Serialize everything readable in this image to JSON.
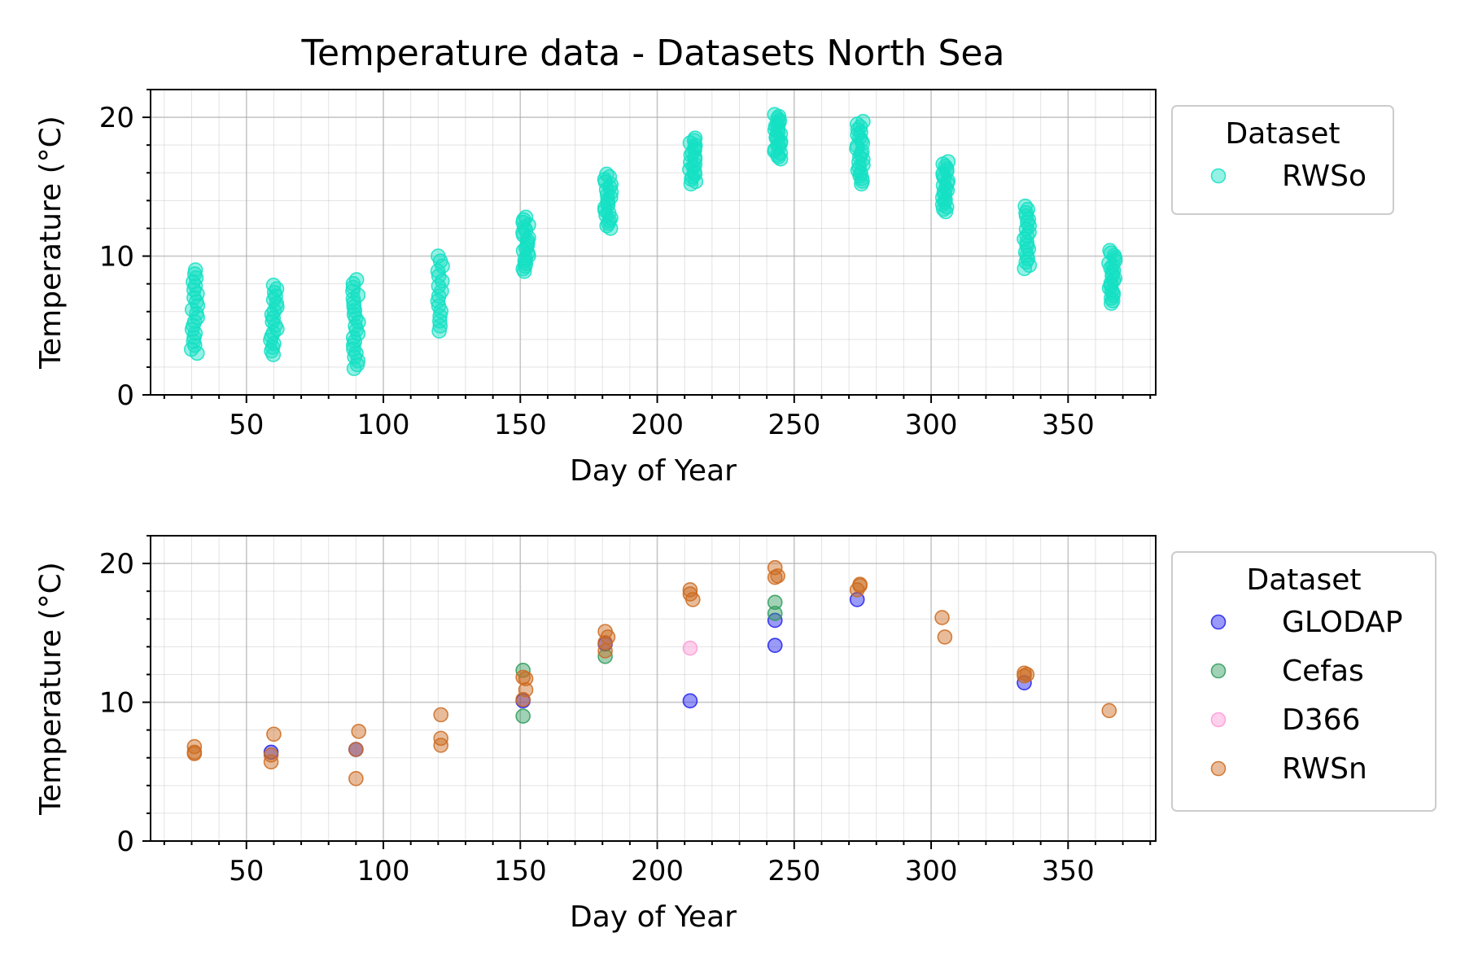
{
  "chart_data": [
    {
      "type": "scatter",
      "title": "Temperature data - Datasets North Sea",
      "xlabel": "Day of Year",
      "ylabel": "Temperature (°C)",
      "xlim": [
        15,
        382
      ],
      "ylim": [
        0,
        22
      ],
      "xticks": [
        50,
        100,
        150,
        200,
        250,
        300,
        350
      ],
      "yticks": [
        0,
        10,
        20
      ],
      "grid": true,
      "legend": {
        "title": "Dataset",
        "placement": "outside-right"
      },
      "series": [
        {
          "name": "RWSo",
          "color": "#14e0c4",
          "ranges": [
            {
              "x": 31,
              "ymin": 3.0,
              "ymax": 9.0,
              "n": 22
            },
            {
              "x": 60,
              "ymin": 2.9,
              "ymax": 7.9,
              "n": 20
            },
            {
              "x": 90,
              "ymin": 1.9,
              "ymax": 8.3,
              "n": 24
            },
            {
              "x": 121,
              "ymin": 4.6,
              "ymax": 10.0,
              "n": 16
            },
            {
              "x": 152,
              "ymin": 8.9,
              "ymax": 12.8,
              "n": 22
            },
            {
              "x": 182,
              "ymin": 12.0,
              "ymax": 15.9,
              "n": 22
            },
            {
              "x": 213,
              "ymin": 15.2,
              "ymax": 18.5,
              "n": 20
            },
            {
              "x": 244,
              "ymin": 17.0,
              "ymax": 20.2,
              "n": 24
            },
            {
              "x": 274,
              "ymin": 15.2,
              "ymax": 19.7,
              "n": 24
            },
            {
              "x": 305,
              "ymin": 13.2,
              "ymax": 16.8,
              "n": 22
            },
            {
              "x": 335,
              "ymin": 9.1,
              "ymax": 13.6,
              "n": 20
            },
            {
              "x": 366,
              "ymin": 6.6,
              "ymax": 10.4,
              "n": 22
            }
          ]
        }
      ]
    },
    {
      "type": "scatter",
      "title": "",
      "xlabel": "Day of Year",
      "ylabel": "Temperature (°C)",
      "xlim": [
        15,
        382
      ],
      "ylim": [
        0,
        22
      ],
      "xticks": [
        50,
        100,
        150,
        200,
        250,
        300,
        350
      ],
      "yticks": [
        0,
        10,
        20
      ],
      "grid": true,
      "legend": {
        "title": "Dataset",
        "placement": "outside-right"
      },
      "series": [
        {
          "name": "GLODAP",
          "color": "#1f1fef",
          "points": [
            [
              59,
              6.4
            ],
            [
              90,
              6.6
            ],
            [
              151,
              10.1
            ],
            [
              181,
              14.2
            ],
            [
              212,
              10.1
            ],
            [
              243,
              15.9
            ],
            [
              243,
              14.1
            ],
            [
              273,
              17.4
            ],
            [
              334,
              11.4
            ]
          ]
        },
        {
          "name": "Cefas",
          "color": "#2e9b5a",
          "points": [
            [
              151,
              12.3
            ],
            [
              151,
              9.0
            ],
            [
              181,
              13.3
            ],
            [
              243,
              17.2
            ],
            [
              243,
              16.4
            ]
          ]
        },
        {
          "name": "D366",
          "color": "#ff9ad6",
          "points": [
            [
              212,
              13.9
            ]
          ]
        },
        {
          "name": "RWSn",
          "color": "#cc6a1f",
          "points": [
            [
              31,
              6.3
            ],
            [
              31,
              6.8
            ],
            [
              31,
              6.4
            ],
            [
              59,
              6.2
            ],
            [
              59,
              5.7
            ],
            [
              60,
              7.7
            ],
            [
              90,
              6.6
            ],
            [
              91,
              7.9
            ],
            [
              90,
              4.5
            ],
            [
              121,
              9.1
            ],
            [
              121,
              7.4
            ],
            [
              121,
              6.9
            ],
            [
              151,
              11.8
            ],
            [
              152,
              11.7
            ],
            [
              152,
              10.9
            ],
            [
              151,
              10.2
            ],
            [
              181,
              15.1
            ],
            [
              182,
              14.7
            ],
            [
              181,
              14.3
            ],
            [
              181,
              13.7
            ],
            [
              212,
              18.1
            ],
            [
              213,
              17.4
            ],
            [
              212,
              17.8
            ],
            [
              243,
              19.7
            ],
            [
              244,
              19.1
            ],
            [
              243,
              19.0
            ],
            [
              274,
              18.4
            ],
            [
              273,
              18.1
            ],
            [
              274,
              18.5
            ],
            [
              304,
              16.1
            ],
            [
              305,
              14.7
            ],
            [
              334,
              12.1
            ],
            [
              335,
              12.0
            ],
            [
              334,
              11.9
            ],
            [
              365,
              9.4
            ]
          ]
        }
      ]
    }
  ]
}
